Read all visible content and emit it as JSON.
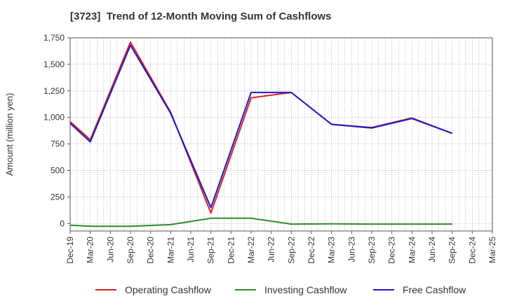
{
  "chart_data": {
    "type": "line",
    "title": "[3723]  Trend of 12-Month Moving Sum of Cashflows",
    "ylabel": "Amount (million yen)",
    "xlabel": "",
    "categories": [
      "Dec-19",
      "Mar-20",
      "Jun-20",
      "Sep-20",
      "Dec-20",
      "Mar-21",
      "Jun-21",
      "Sep-21",
      "Dec-21",
      "Mar-22",
      "Jun-22",
      "Sep-22",
      "Dec-22",
      "Mar-23",
      "Jun-23",
      "Sep-23",
      "Dec-23",
      "Mar-24",
      "Jun-24",
      "Sep-24",
      "Dec-24",
      "Mar-25"
    ],
    "ylim": [
      -70,
      1750
    ],
    "yticks": [
      0,
      250,
      500,
      750,
      1000,
      1250,
      1500,
      1750
    ],
    "ytick_labels": [
      "0",
      "250",
      "500",
      "750",
      "1,000",
      "1,250",
      "1,500",
      "1,750"
    ],
    "grid": true,
    "legend_position": "bottom",
    "series": [
      {
        "name": "Operating Cashflow",
        "color": "#e02020",
        "values": [
          960,
          790,
          null,
          1710,
          null,
          1050,
          null,
          100,
          null,
          1185,
          null,
          1235,
          null,
          935,
          null,
          905,
          null,
          995,
          null,
          850,
          null,
          null
        ]
      },
      {
        "name": "Investing Cashflow",
        "color": "#2e8b2e",
        "values": [
          -15,
          -25,
          null,
          -25,
          null,
          -10,
          null,
          50,
          null,
          50,
          null,
          -5,
          null,
          -3,
          null,
          -5,
          null,
          -5,
          null,
          -5,
          null,
          null
        ]
      },
      {
        "name": "Free Cashflow",
        "color": "#1a1acc",
        "values": [
          945,
          770,
          null,
          1680,
          null,
          1040,
          null,
          150,
          null,
          1235,
          null,
          1235,
          null,
          935,
          null,
          900,
          null,
          990,
          null,
          850,
          null,
          null
        ]
      }
    ]
  }
}
